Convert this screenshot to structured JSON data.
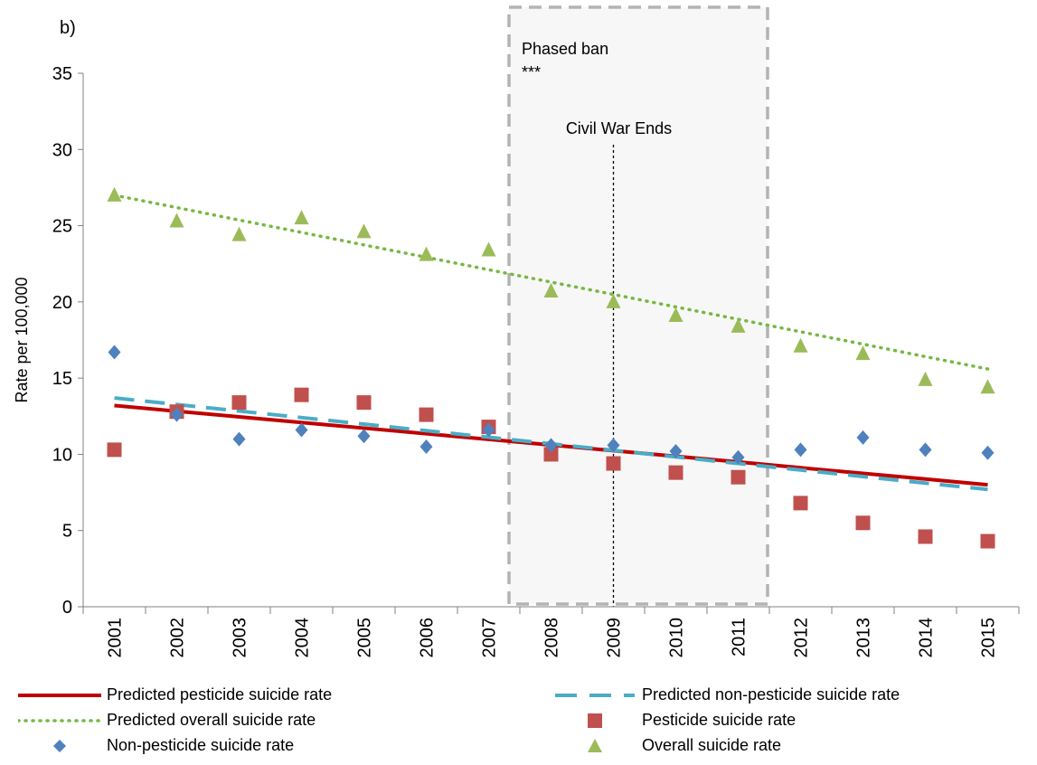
{
  "panel_label": "b)",
  "colors": {
    "predicted_pesticide": "#c00000",
    "predicted_nonpesticide": "#4bacc6",
    "predicted_overall": "#77b843",
    "pesticide": "#c0504d",
    "nonpesticide": "#4f81bd",
    "overall": "#9bbb59",
    "ban_box_border": "#b3b3b3",
    "ban_box_fill": "#f7f7f7"
  },
  "chart_data": {
    "type": "scatter",
    "title": "",
    "xlabel": "",
    "ylabel": "Rate per 100,000",
    "categories": [
      "2001",
      "2002",
      "2003",
      "2004",
      "2005",
      "2006",
      "2007",
      "2008",
      "2009",
      "2010",
      "2011",
      "2012",
      "2013",
      "2014",
      "2015"
    ],
    "y_ticks": [
      "0",
      "5",
      "10",
      "15",
      "20",
      "25",
      "30",
      "35"
    ],
    "ylim": [
      0,
      35
    ],
    "grid": false,
    "legend_position": "bottom",
    "series": [
      {
        "name": "Predicted pesticide suicide rate",
        "kind": "line",
        "style": "solid",
        "values": [
          13.2,
          12.83,
          12.46,
          12.09,
          11.72,
          11.35,
          10.98,
          10.61,
          10.24,
          9.87,
          9.5,
          9.12,
          8.75,
          8.38,
          8.0
        ]
      },
      {
        "name": "Predicted non-pesticide suicide rate",
        "kind": "line",
        "style": "dashed",
        "values": [
          13.7,
          13.27,
          12.84,
          12.41,
          11.98,
          11.55,
          11.12,
          10.69,
          10.26,
          9.83,
          9.4,
          8.97,
          8.54,
          8.11,
          7.7
        ]
      },
      {
        "name": "Predicted overall suicide rate",
        "kind": "line",
        "style": "dotted",
        "values": [
          27.0,
          26.19,
          25.37,
          24.56,
          23.74,
          22.93,
          22.11,
          21.3,
          20.49,
          19.67,
          18.86,
          18.04,
          17.23,
          16.41,
          15.6
        ]
      },
      {
        "name": "Pesticide suicide rate",
        "kind": "marker",
        "marker": "square",
        "values": [
          10.3,
          12.8,
          13.4,
          13.9,
          13.4,
          12.6,
          11.8,
          10.0,
          9.4,
          8.8,
          8.5,
          6.8,
          5.5,
          4.6,
          4.3
        ]
      },
      {
        "name": "Non-pesticide suicide rate",
        "kind": "marker",
        "marker": "diamond",
        "values": [
          16.7,
          12.6,
          11.0,
          11.6,
          11.2,
          10.5,
          11.6,
          10.6,
          10.6,
          10.2,
          9.8,
          10.3,
          11.1,
          10.3,
          10.1
        ]
      },
      {
        "name": "Overall suicide rate",
        "kind": "marker",
        "marker": "triangle",
        "values": [
          27.0,
          25.3,
          24.4,
          25.5,
          24.6,
          23.1,
          23.4,
          20.7,
          20.0,
          19.1,
          18.4,
          17.1,
          16.6,
          14.9,
          14.4
        ]
      }
    ],
    "annotations": {
      "ban_region": {
        "label": "Phased ban",
        "stars": "***",
        "from_category": "2008",
        "to_category": "2011"
      },
      "event_line": {
        "label": "Civil War Ends",
        "category": "2009"
      }
    }
  }
}
